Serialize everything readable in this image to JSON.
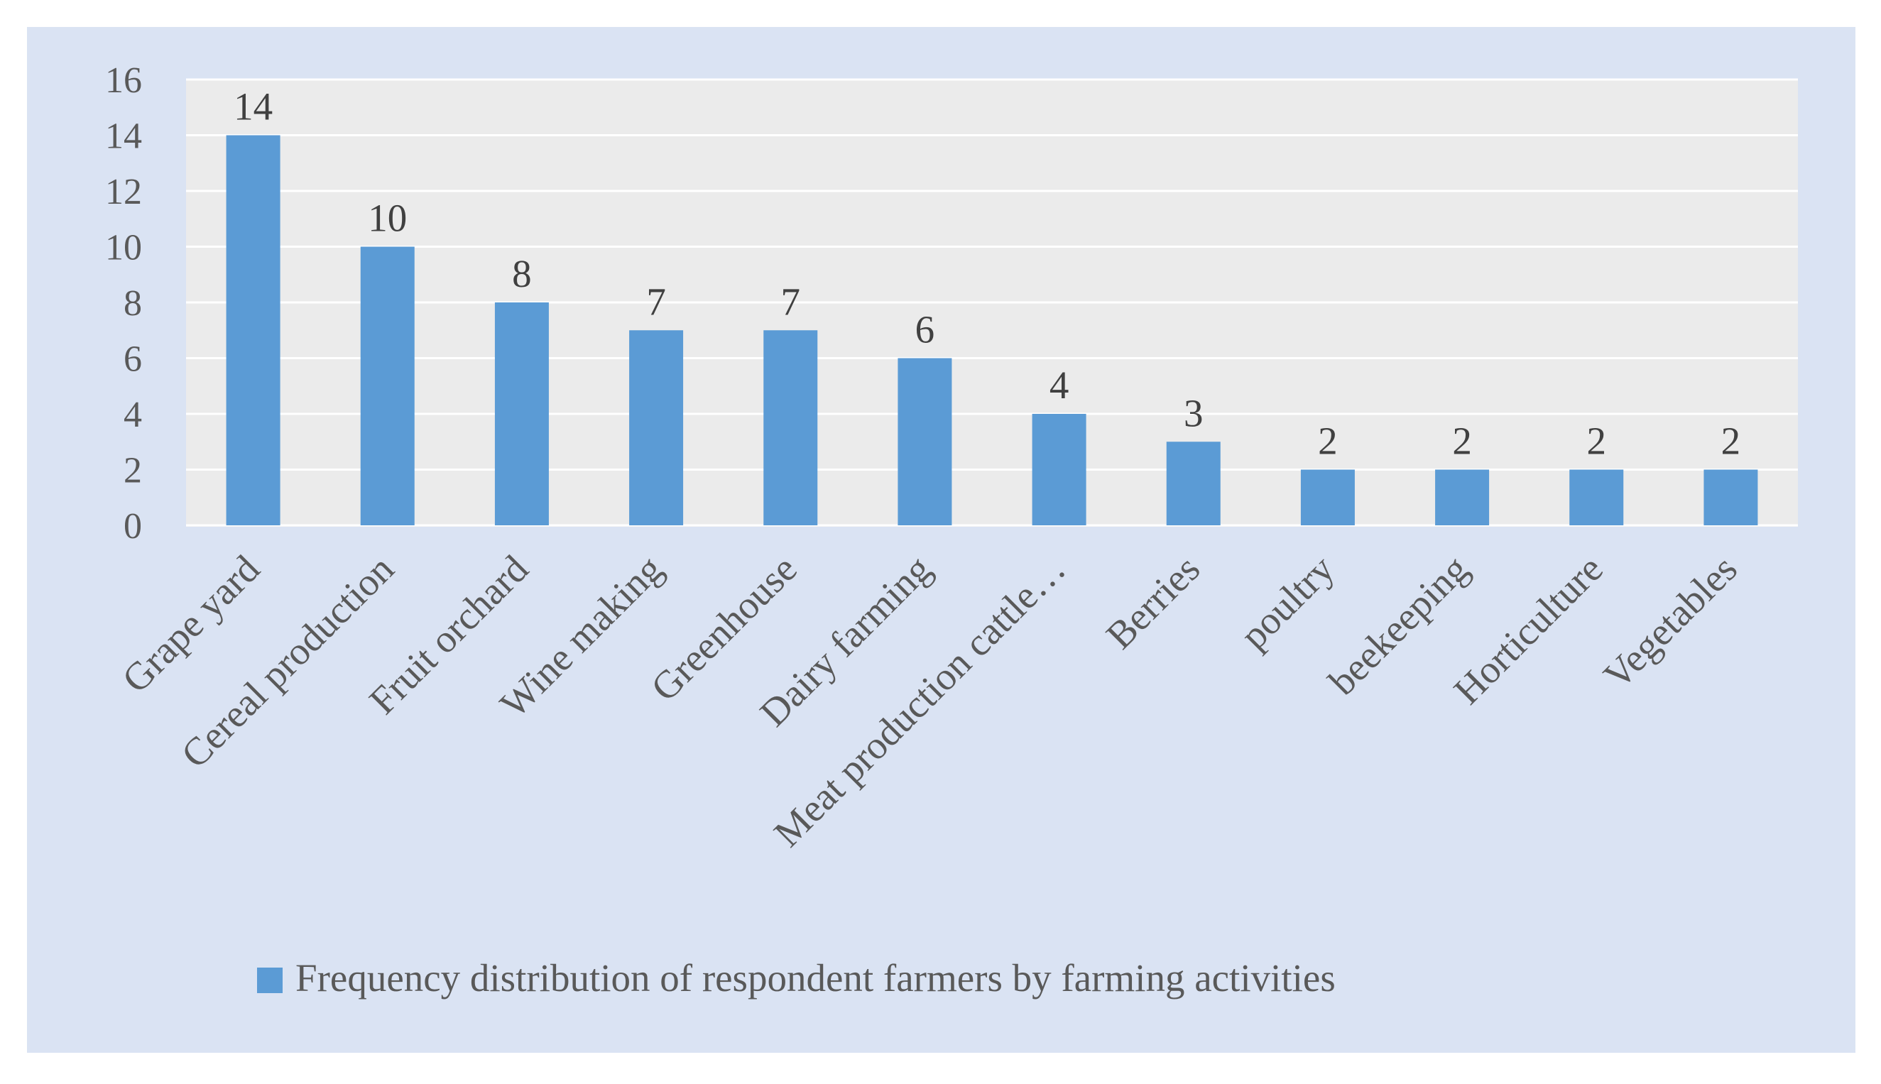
{
  "chart_data": {
    "type": "bar",
    "categories": [
      "Grape yard",
      "Cereal production",
      "Fruit orchard",
      "Wine making",
      "Greenhouse",
      "Dairy farming",
      "Meat production cattle…",
      "Berries",
      "poultry",
      "beekeeping",
      "Horticulture",
      "Vegetables"
    ],
    "series": [
      {
        "name": "Frequency distribution of respondent farmers by farming activities",
        "values": [
          14,
          10,
          8,
          7,
          7,
          6,
          4,
          3,
          2,
          2,
          2,
          2
        ]
      }
    ],
    "ylim": [
      0,
      16
    ],
    "yticks": [
      0,
      2,
      4,
      6,
      8,
      10,
      12,
      14,
      16
    ],
    "grid": true,
    "data_labels": true,
    "legend_position": "bottom",
    "colors": {
      "bar": "#5b9bd5",
      "page_background": "#dae3f3",
      "plot_background": "#ebebeb",
      "gridline": "#ffffff",
      "text": "#595959"
    }
  }
}
